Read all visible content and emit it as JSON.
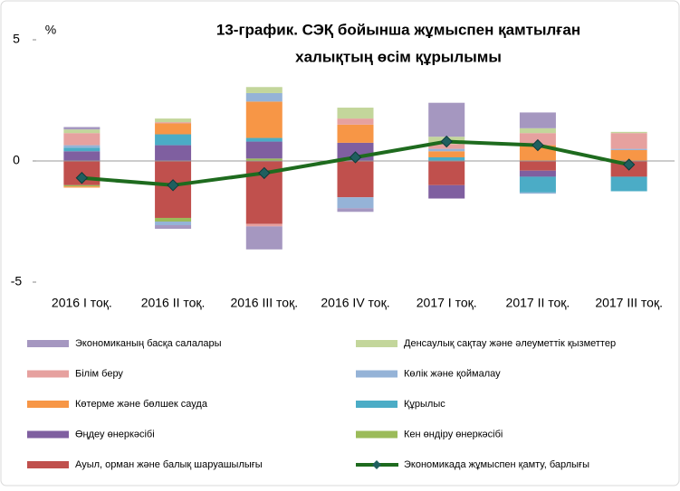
{
  "chart_data": {
    "type": "stacked_bar_line",
    "title": [
      "13-график. СЭҚ бойынша жұмыспен қамтылған",
      "халықтың өсім құрылымы"
    ],
    "y_label": "%",
    "categories": [
      "2016 I тоқ.",
      "2016 II тоқ.",
      "2016 III тоқ.",
      "2016 IV тоқ.",
      "2017 I тоқ.",
      "2017 II тоқ.",
      "2017 III тоқ."
    ],
    "ylim": [
      -5,
      5
    ],
    "yticks": [
      5,
      0,
      -5
    ],
    "series": [
      {
        "name": "Экономиканың басқа салалары",
        "color": "#a597c0",
        "values": [
          0.1,
          -0.15,
          -0.95,
          -0.15,
          1.4,
          0.65,
          0
        ]
      },
      {
        "name": "Денсаулық сақтау және әлеуметтік қызметтер",
        "color": "#c3d69b",
        "values": [
          0.15,
          0.15,
          0.25,
          0.45,
          0.3,
          0.2,
          0.05
        ]
      },
      {
        "name": "Білім беру",
        "color": "#e6a19f",
        "values": [
          0.5,
          0.05,
          -0.1,
          0.25,
          0.2,
          0.5,
          0.65
        ]
      },
      {
        "name": "Көлік және қоймалау",
        "color": "#95b3d7",
        "values": [
          0.1,
          -0.15,
          0.35,
          -0.45,
          0.1,
          -0.05,
          0.05
        ]
      },
      {
        "name": "Көтерме және бөлшек сауда",
        "color": "#f79646",
        "values": [
          -0.05,
          0.45,
          1.5,
          0.75,
          0.25,
          0.65,
          0.45
        ]
      },
      {
        "name": "Құрылыс",
        "color": "#4bacc6",
        "values": [
          0.15,
          0.45,
          0.15,
          0,
          0.15,
          -0.65,
          -0.6
        ]
      },
      {
        "name": "Өңдеу өнеркәсібі",
        "color": "#7f5fa0",
        "values": [
          0.4,
          0.65,
          0.7,
          0.75,
          -0.55,
          -0.25,
          0
        ]
      },
      {
        "name": "Кен өндіру өнеркәсібі",
        "color": "#9bbb59",
        "values": [
          -0.05,
          -0.15,
          0.1,
          0,
          0,
          0,
          0
        ]
      },
      {
        "name": "Ауыл, орман және балық шаруашылығы",
        "color": "#c0504d",
        "values": [
          -1.0,
          -2.35,
          -2.6,
          -1.5,
          -1.0,
          -0.4,
          -0.65
        ]
      },
      {
        "name": "Экономикада жұмыспен қамту, барлығы",
        "color": "#1e6b1e",
        "marker_color": "#1f5f5f",
        "kind": "line",
        "values": [
          -0.7,
          -1.0,
          -0.5,
          0.15,
          0.8,
          0.65,
          -0.15
        ]
      }
    ]
  }
}
